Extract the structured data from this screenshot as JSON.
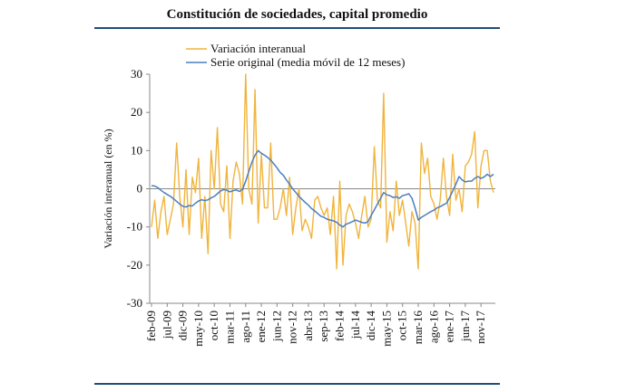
{
  "title": "Constitución de sociedades, capital promedio",
  "chart_data": {
    "type": "line",
    "title": "Constitución de sociedades, capital promedio",
    "ylabel": "Variación interanual (en %)",
    "xlabel": "",
    "ylim": [
      -30,
      30
    ],
    "yticks": [
      30,
      20,
      10,
      0,
      -10,
      -20,
      -30
    ],
    "x_start": "feb-09",
    "x_end": "nov-17",
    "xtick_labels": [
      "feb-09",
      "jul-09",
      "dic-09",
      "may-10",
      "oct-10",
      "mar-11",
      "ago-11",
      "ene-12",
      "jun-12",
      "nov-12",
      "abr-13",
      "sep-13",
      "feb-14",
      "jul-14",
      "dic-14",
      "may-15",
      "oct-15",
      "mar-16",
      "ago-16",
      "ene-17",
      "jun-17",
      "nov-17"
    ],
    "grid": false,
    "legend_position": "top-left",
    "series": [
      {
        "name": "Variación interanual",
        "color": "#f0b43c",
        "values": [
          -10,
          -3,
          -13,
          -6,
          -2,
          -12,
          -8,
          -4,
          12,
          -2,
          -10,
          5,
          -12,
          3,
          -1,
          8,
          -13,
          -2,
          -17,
          10,
          0,
          16,
          -4,
          -6,
          6,
          -13,
          2,
          7,
          4,
          -4,
          30,
          0,
          -4,
          26,
          -9,
          9,
          -5,
          -5,
          12,
          -8,
          -8,
          -5,
          0,
          -7,
          3,
          -12,
          -5,
          0,
          -11,
          -8,
          -10,
          -13,
          -3,
          -2,
          -5,
          -7,
          -5,
          -12,
          -2,
          -21,
          2,
          -20,
          -7,
          -4,
          -6,
          -9,
          -13,
          -7,
          -2,
          -10,
          -8,
          11,
          -3,
          -5,
          25,
          -14,
          -6,
          -11,
          2,
          -7,
          -3,
          -9,
          -15,
          -6,
          -9,
          -21,
          12,
          4,
          8,
          -2,
          -4,
          -8,
          -3,
          8,
          -2,
          -7,
          9,
          -3,
          0,
          -6,
          6,
          7,
          9,
          15,
          -5,
          6,
          10,
          10,
          2,
          -1
        ]
      },
      {
        "name": "Serie original (media móvil de 12 meses)",
        "color": "#4a7fbf",
        "values": [
          0.8,
          0.7,
          0.3,
          -0.4,
          -1,
          -1.5,
          -2,
          -2.6,
          -3.3,
          -4,
          -4.6,
          -4.8,
          -4.4,
          -4.5,
          -3.8,
          -3.2,
          -2.9,
          -3.1,
          -2.9,
          -2.4,
          -2,
          -1.3,
          -0.6,
          -0.2,
          -0.4,
          -0.8,
          -0.5,
          -0.3,
          -0.7,
          -0.2,
          2,
          4.5,
          7,
          8.8,
          10,
          9.3,
          8.8,
          8.2,
          7.5,
          6.5,
          5.5,
          4.3,
          3.5,
          2.3,
          1.2,
          0,
          -1,
          -2,
          -2.8,
          -3.6,
          -4.3,
          -5.2,
          -5.8,
          -6.5,
          -7.2,
          -7.5,
          -8,
          -8.2,
          -8.4,
          -8.8,
          -9.5,
          -10,
          -9.3,
          -9,
          -8.6,
          -8.2,
          -8.5,
          -8.8,
          -9,
          -8.6,
          -7,
          -5.5,
          -4,
          -2.5,
          -1,
          -1.6,
          -1.8,
          -2.3,
          -2.1,
          -2.5,
          -1.8,
          -1.6,
          -1.3,
          -2.5,
          -5,
          -8.2,
          -7.5,
          -7,
          -6.5,
          -6,
          -5.6,
          -5,
          -4.7,
          -4.2,
          -3.8,
          -2.3,
          -0.6,
          1.2,
          3.2,
          2.3,
          1.8,
          2,
          2,
          2.7,
          3.2,
          2.7,
          3.1,
          3.8,
          3.2,
          3.8
        ]
      }
    ]
  }
}
